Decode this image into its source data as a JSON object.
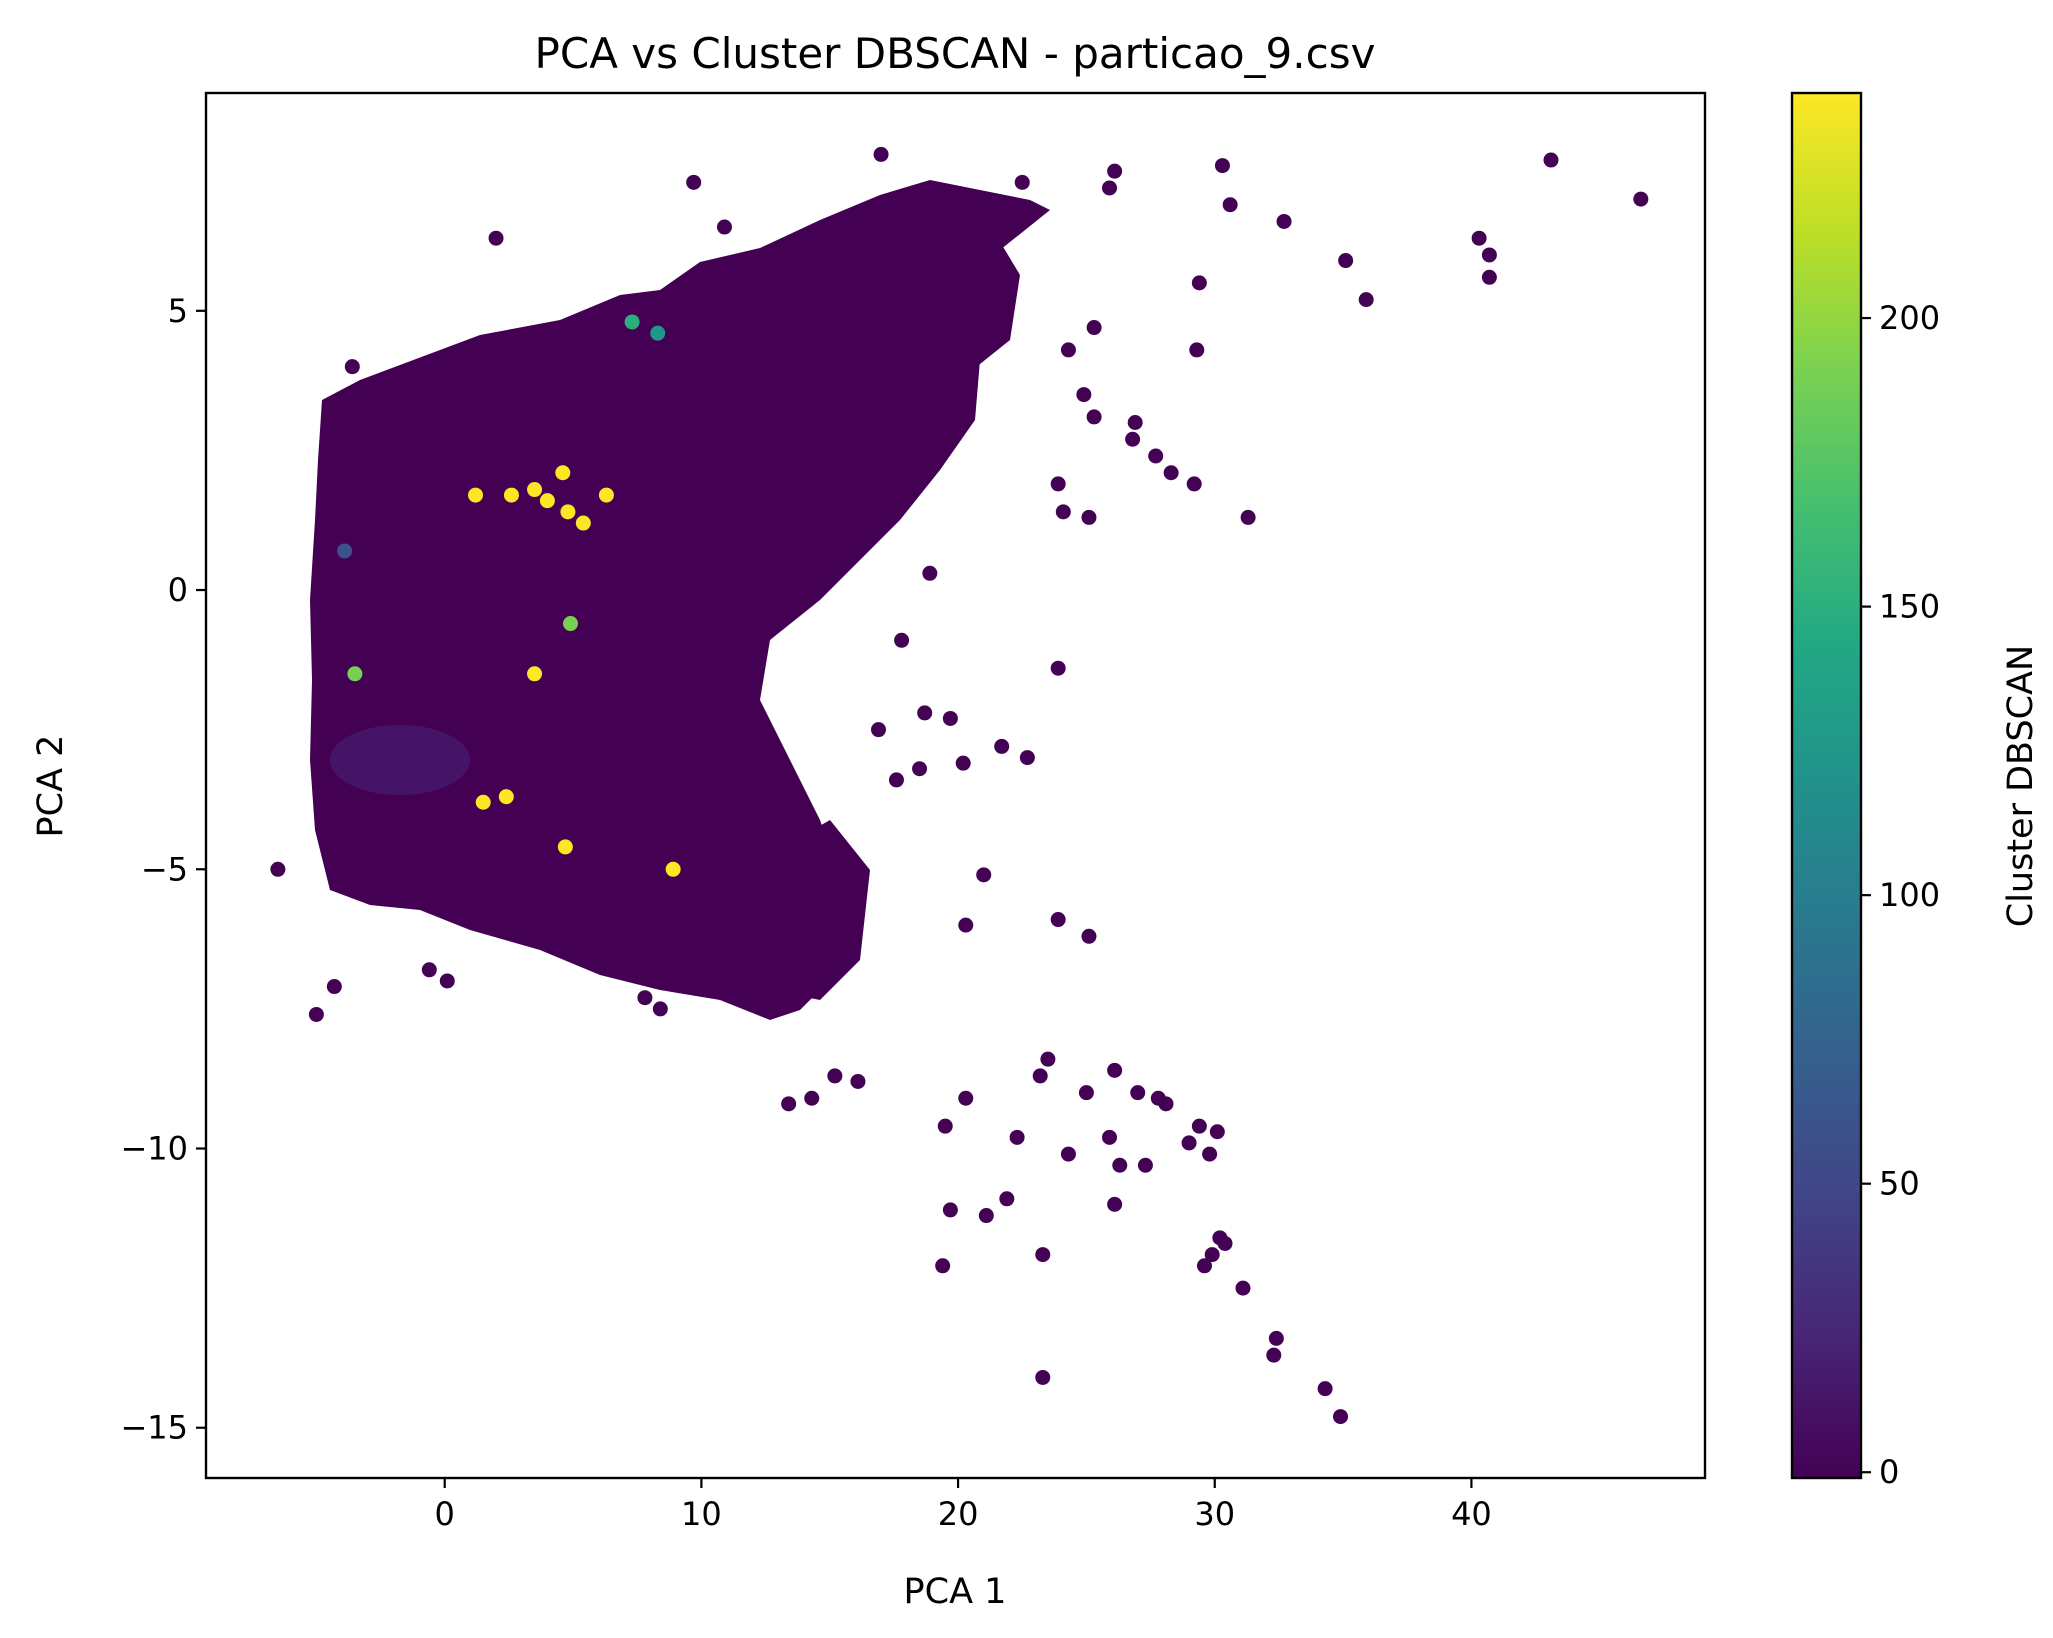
{
  "chart_data": {
    "type": "scatter",
    "title": "PCA vs Cluster DBSCAN - particao_9.csv",
    "xlabel": "PCA 1",
    "ylabel": "PCA 2",
    "xlim": [
      -9.3,
      49.1
    ],
    "ylim": [
      -15.9,
      8.9
    ],
    "xticks": [
      0,
      10,
      20,
      30,
      40
    ],
    "yticks": [
      5,
      0,
      -5,
      -10,
      -15
    ],
    "xtick_labels": [
      "0",
      "10",
      "20",
      "30",
      "40"
    ],
    "ytick_labels": [
      "5",
      "0",
      "−5",
      "−10",
      "−15"
    ],
    "colorbar": {
      "label": "Cluster DBSCAN",
      "range": [
        -1,
        239
      ],
      "ticks": [
        0,
        50,
        100,
        150,
        200
      ],
      "tick_labels": [
        "0",
        "50",
        "100",
        "150",
        "200"
      ],
      "colormap": "viridis"
    },
    "grid": false,
    "points": [
      {
        "x": 46.6,
        "y": 7.0,
        "c": 0
      },
      {
        "x": 43.1,
        "y": 7.7,
        "c": 0
      },
      {
        "x": 40.3,
        "y": 6.3,
        "c": 0
      },
      {
        "x": 40.7,
        "y": 6.0,
        "c": 0
      },
      {
        "x": 40.7,
        "y": 5.6,
        "c": 0
      },
      {
        "x": 35.9,
        "y": 5.2,
        "c": 0
      },
      {
        "x": 35.1,
        "y": 5.9,
        "c": 0
      },
      {
        "x": 32.7,
        "y": 6.6,
        "c": 0
      },
      {
        "x": 31.3,
        "y": 1.3,
        "c": 0
      },
      {
        "x": 30.3,
        "y": 7.6,
        "c": 0
      },
      {
        "x": 30.6,
        "y": 6.9,
        "c": 0
      },
      {
        "x": 29.3,
        "y": 4.3,
        "c": 0
      },
      {
        "x": 29.4,
        "y": 5.5,
        "c": 0
      },
      {
        "x": 29.2,
        "y": 1.9,
        "c": 0
      },
      {
        "x": 28.3,
        "y": 2.1,
        "c": 0
      },
      {
        "x": 27.7,
        "y": 2.4,
        "c": 0
      },
      {
        "x": 26.8,
        "y": 2.7,
        "c": 0
      },
      {
        "x": 26.9,
        "y": 3.0,
        "c": 0
      },
      {
        "x": 25.9,
        "y": 7.2,
        "c": 0
      },
      {
        "x": 26.1,
        "y": 7.5,
        "c": 0
      },
      {
        "x": 25.1,
        "y": 1.3,
        "c": 0
      },
      {
        "x": 24.1,
        "y": 1.4,
        "c": 0
      },
      {
        "x": 24.9,
        "y": 3.5,
        "c": 0
      },
      {
        "x": 25.3,
        "y": 3.1,
        "c": 0
      },
      {
        "x": 25.3,
        "y": 4.7,
        "c": 0
      },
      {
        "x": 24.3,
        "y": 4.3,
        "c": 0
      },
      {
        "x": 23.9,
        "y": 1.9,
        "c": 0
      },
      {
        "x": 23.9,
        "y": -1.4,
        "c": 0
      },
      {
        "x": 22.7,
        "y": -3.0,
        "c": 0
      },
      {
        "x": 21.7,
        "y": -2.8,
        "c": 0
      },
      {
        "x": 20.2,
        "y": -3.1,
        "c": 0
      },
      {
        "x": 19.7,
        "y": -2.3,
        "c": 0
      },
      {
        "x": 18.7,
        "y": -2.2,
        "c": 0
      },
      {
        "x": 16.9,
        "y": -2.5,
        "c": 0
      },
      {
        "x": 17.6,
        "y": -3.4,
        "c": 0
      },
      {
        "x": 18.5,
        "y": -3.2,
        "c": 0
      },
      {
        "x": 17.8,
        "y": -0.9,
        "c": 0
      },
      {
        "x": 18.9,
        "y": 0.3,
        "c": 0
      },
      {
        "x": 23.9,
        "y": -5.9,
        "c": 0
      },
      {
        "x": 25.1,
        "y": -6.2,
        "c": 0
      },
      {
        "x": 21.0,
        "y": -5.1,
        "c": 0
      },
      {
        "x": 20.3,
        "y": -6.0,
        "c": 0
      },
      {
        "x": 23.5,
        "y": -8.4,
        "c": 0
      },
      {
        "x": 23.2,
        "y": -8.7,
        "c": 0
      },
      {
        "x": 26.1,
        "y": -8.6,
        "c": 0
      },
      {
        "x": 25.0,
        "y": -9.0,
        "c": 0
      },
      {
        "x": 25.9,
        "y": -9.8,
        "c": 0
      },
      {
        "x": 26.3,
        "y": -10.3,
        "c": 0
      },
      {
        "x": 27.3,
        "y": -10.3,
        "c": 0
      },
      {
        "x": 27.0,
        "y": -9.0,
        "c": 0
      },
      {
        "x": 27.8,
        "y": -9.1,
        "c": 0
      },
      {
        "x": 28.1,
        "y": -9.2,
        "c": 0
      },
      {
        "x": 29.4,
        "y": -9.6,
        "c": 0
      },
      {
        "x": 30.1,
        "y": -9.7,
        "c": 0
      },
      {
        "x": 29.0,
        "y": -9.9,
        "c": 0
      },
      {
        "x": 29.8,
        "y": -10.1,
        "c": 0
      },
      {
        "x": 24.3,
        "y": -10.1,
        "c": 0
      },
      {
        "x": 22.3,
        "y": -9.8,
        "c": 0
      },
      {
        "x": 26.1,
        "y": -11.0,
        "c": 0
      },
      {
        "x": 21.9,
        "y": -10.9,
        "c": 0
      },
      {
        "x": 21.1,
        "y": -11.2,
        "c": 0
      },
      {
        "x": 19.7,
        "y": -11.1,
        "c": 0
      },
      {
        "x": 19.4,
        "y": -12.1,
        "c": 0
      },
      {
        "x": 23.3,
        "y": -11.9,
        "c": 0
      },
      {
        "x": 30.2,
        "y": -11.6,
        "c": 0
      },
      {
        "x": 30.4,
        "y": -11.7,
        "c": 0
      },
      {
        "x": 29.6,
        "y": -12.1,
        "c": 0
      },
      {
        "x": 29.9,
        "y": -11.9,
        "c": 0
      },
      {
        "x": 31.1,
        "y": -12.5,
        "c": 0
      },
      {
        "x": 32.4,
        "y": -13.4,
        "c": 0
      },
      {
        "x": 32.3,
        "y": -13.7,
        "c": 0
      },
      {
        "x": 34.3,
        "y": -14.3,
        "c": 0
      },
      {
        "x": 34.9,
        "y": -14.8,
        "c": 0
      },
      {
        "x": 23.3,
        "y": -14.1,
        "c": 0
      },
      {
        "x": 19.5,
        "y": -9.6,
        "c": 0
      },
      {
        "x": 20.3,
        "y": -9.1,
        "c": 0
      },
      {
        "x": 13.4,
        "y": -9.2,
        "c": 0
      },
      {
        "x": 14.3,
        "y": -9.1,
        "c": 0
      },
      {
        "x": 16.1,
        "y": -8.8,
        "c": 0
      },
      {
        "x": 15.2,
        "y": -8.7,
        "c": 0
      },
      {
        "x": -6.5,
        "y": -5.0,
        "c": 0
      },
      {
        "x": -5.0,
        "y": -7.6,
        "c": 0
      },
      {
        "x": -4.3,
        "y": -7.1,
        "c": 0
      },
      {
        "x": -0.6,
        "y": -6.8,
        "c": 0
      },
      {
        "x": 0.1,
        "y": -7.0,
        "c": 0
      },
      {
        "x": 7.8,
        "y": -7.3,
        "c": 0
      },
      {
        "x": 8.4,
        "y": -7.5,
        "c": 0
      },
      {
        "x": 9.7,
        "y": 7.3,
        "c": 0
      },
      {
        "x": 10.9,
        "y": 6.5,
        "c": 0
      },
      {
        "x": 17.0,
        "y": 7.8,
        "c": 0
      },
      {
        "x": 22.5,
        "y": 7.3,
        "c": 0
      },
      {
        "x": 2.0,
        "y": 6.3,
        "c": 0
      },
      {
        "x": -3.6,
        "y": 4.0,
        "c": 0
      },
      {
        "x": 3.5,
        "y": 1.8,
        "c": 239
      },
      {
        "x": 4.0,
        "y": 1.6,
        "c": 239
      },
      {
        "x": 4.8,
        "y": 1.4,
        "c": 239
      },
      {
        "x": 2.6,
        "y": 1.7,
        "c": 239
      },
      {
        "x": 1.2,
        "y": 1.7,
        "c": 239
      },
      {
        "x": 5.4,
        "y": 1.2,
        "c": 239
      },
      {
        "x": 6.3,
        "y": 1.7,
        "c": 239
      },
      {
        "x": 4.6,
        "y": 2.1,
        "c": 239
      },
      {
        "x": 2.4,
        "y": -3.7,
        "c": 239
      },
      {
        "x": 1.5,
        "y": -3.8,
        "c": 239
      },
      {
        "x": 4.7,
        "y": -4.6,
        "c": 239
      },
      {
        "x": 8.9,
        "y": -5.0,
        "c": 239
      },
      {
        "x": 3.5,
        "y": -1.5,
        "c": 239
      },
      {
        "x": 7.3,
        "y": 4.8,
        "c": 150
      },
      {
        "x": 8.3,
        "y": 4.6,
        "c": 125
      },
      {
        "x": -3.5,
        "y": -1.5,
        "c": 190
      },
      {
        "x": 4.9,
        "y": -0.6,
        "c": 190
      },
      {
        "x": -3.9,
        "y": 0.7,
        "c": 60
      }
    ]
  }
}
